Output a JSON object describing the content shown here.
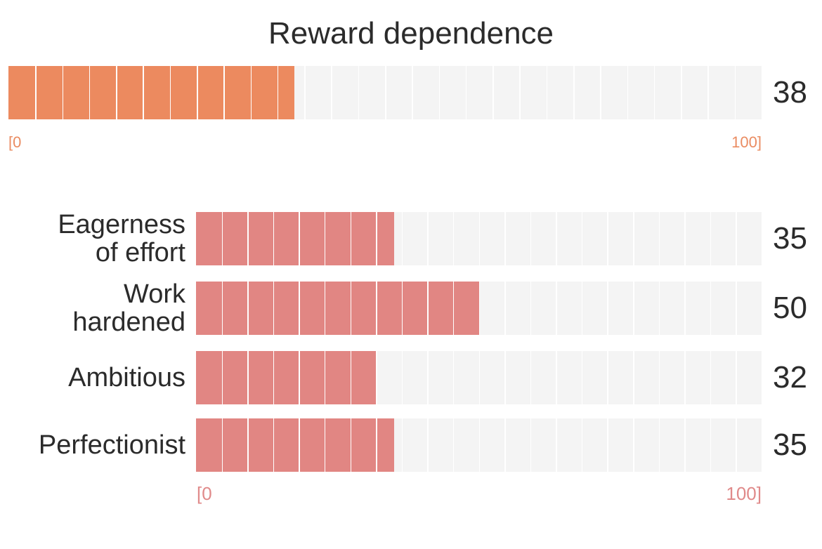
{
  "chart_data": {
    "type": "bar",
    "title": "Reward dependence",
    "main": {
      "value": 38,
      "value_label": "38",
      "range": [
        0,
        100
      ],
      "range_labels": [
        "[0",
        "100]"
      ],
      "segments": 28,
      "color": "#ec8a5f"
    },
    "sub": {
      "range": [
        0,
        100
      ],
      "range_labels": [
        "[0",
        "100]"
      ],
      "segments": 22,
      "color": "#e18683",
      "rows": [
        {
          "label_lines": [
            "Eagerness",
            "of effort"
          ],
          "value": 35,
          "value_label": "35"
        },
        {
          "label_lines": [
            "Work",
            "hardened"
          ],
          "value": 50,
          "value_label": "50"
        },
        {
          "label_lines": [
            "Ambitious"
          ],
          "value": 32,
          "value_label": "32"
        },
        {
          "label_lines": [
            "Perfectionist"
          ],
          "value": 35,
          "value_label": "35"
        }
      ]
    }
  }
}
